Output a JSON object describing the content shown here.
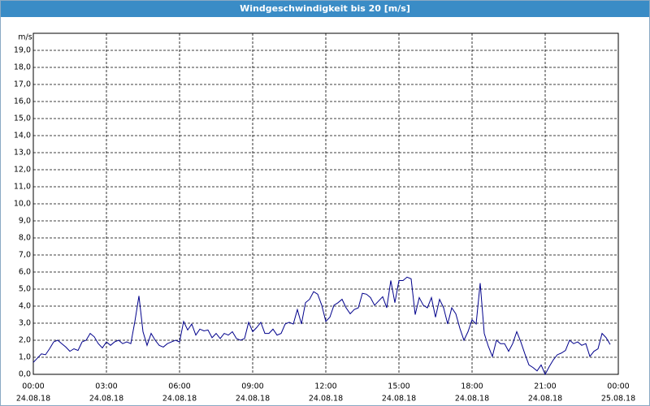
{
  "chart_data": {
    "type": "line",
    "title": "Windgeschwindigkeit bis 20 [m/s]",
    "y_label": "m/s",
    "x": [
      0,
      10,
      20,
      30,
      40,
      50,
      60,
      70,
      80,
      90,
      100,
      110,
      120,
      130,
      140,
      150,
      160,
      170,
      180,
      190,
      200,
      210,
      220,
      230,
      240,
      250,
      260,
      270,
      280,
      290,
      300,
      310,
      320,
      330,
      340,
      350,
      360,
      370,
      380,
      390,
      400,
      410,
      420,
      430,
      440,
      450,
      460,
      470,
      480,
      490,
      500,
      510,
      520,
      530,
      540,
      550,
      560,
      570,
      580,
      590,
      600,
      610,
      620,
      630,
      640,
      650,
      660,
      670,
      680,
      690,
      700,
      710,
      720,
      730,
      740,
      750,
      760,
      770,
      780,
      790,
      800,
      810,
      820,
      830,
      840,
      850,
      860,
      870,
      880,
      890,
      900,
      910,
      920,
      930,
      940,
      950,
      960,
      970,
      980,
      990,
      1000,
      1010,
      1020,
      1030,
      1040,
      1050,
      1060,
      1070,
      1080,
      1090,
      1100,
      1110,
      1120,
      1130,
      1140,
      1150,
      1160,
      1170,
      1180,
      1190,
      1200,
      1210,
      1220,
      1230,
      1240,
      1250,
      1260,
      1270,
      1280,
      1290,
      1300,
      1310,
      1320,
      1330,
      1340,
      1350,
      1360,
      1370,
      1380,
      1390,
      1400,
      1410,
      1420
    ],
    "series": [
      {
        "color": "#00008b",
        "values": [
          0.7,
          0.95,
          1.2,
          1.15,
          1.5,
          1.9,
          2.0,
          1.8,
          1.6,
          1.35,
          1.5,
          1.4,
          1.9,
          2.0,
          2.4,
          2.2,
          1.8,
          1.55,
          1.9,
          1.7,
          1.9,
          2.0,
          1.8,
          1.9,
          1.8,
          3.1,
          4.6,
          2.5,
          1.7,
          2.4,
          2.0,
          1.7,
          1.6,
          1.8,
          1.9,
          2.0,
          1.9,
          3.1,
          2.6,
          2.95,
          2.3,
          2.65,
          2.55,
          2.6,
          2.15,
          2.4,
          2.1,
          2.4,
          2.3,
          2.5,
          2.1,
          2.0,
          2.1,
          3.05,
          2.5,
          2.75,
          3.05,
          2.4,
          2.4,
          2.65,
          2.3,
          2.4,
          2.95,
          3.05,
          2.95,
          3.8,
          2.95,
          4.2,
          4.4,
          4.85,
          4.7,
          4.05,
          3.1,
          3.35,
          4.05,
          4.2,
          4.4,
          3.9,
          3.55,
          3.8,
          3.9,
          4.75,
          4.7,
          4.5,
          4.05,
          4.3,
          4.55,
          3.9,
          5.5,
          4.2,
          5.5,
          5.5,
          5.7,
          5.6,
          3.5,
          4.5,
          4.05,
          3.9,
          4.5,
          3.35,
          4.4,
          3.9,
          2.95,
          3.9,
          3.55,
          2.7,
          2.0,
          2.5,
          3.2,
          2.95,
          5.35,
          2.4,
          1.65,
          1.05,
          2.0,
          1.8,
          1.8,
          1.35,
          1.8,
          2.5,
          1.9,
          1.2,
          0.55,
          0.4,
          0.2,
          0.55,
          0.0,
          0.45,
          0.85,
          1.15,
          1.25,
          1.4,
          2.0,
          1.8,
          1.9,
          1.7,
          1.8,
          1.05,
          1.35,
          1.5,
          2.4,
          2.15,
          1.75
        ]
      }
    ],
    "xlim": [
      0,
      1440
    ],
    "xticks": [
      {
        "value": 0,
        "label": "00:00",
        "date": "24.08.18"
      },
      {
        "value": 180,
        "label": "03:00",
        "date": "24.08.18"
      },
      {
        "value": 360,
        "label": "06:00",
        "date": "24.08.18"
      },
      {
        "value": 540,
        "label": "09:00",
        "date": "24.08.18"
      },
      {
        "value": 720,
        "label": "12:00",
        "date": "24.08.18"
      },
      {
        "value": 900,
        "label": "15:00",
        "date": "24.08.18"
      },
      {
        "value": 1080,
        "label": "18:00",
        "date": "24.08.18"
      },
      {
        "value": 1260,
        "label": "21:00",
        "date": "24.08.18"
      },
      {
        "value": 1440,
        "label": "00:00",
        "date": "25.08.18"
      }
    ],
    "ylim": [
      0,
      20
    ],
    "yticks": [
      {
        "value": 0,
        "label": "0,0"
      },
      {
        "value": 1,
        "label": "1,0"
      },
      {
        "value": 2,
        "label": "2,0"
      },
      {
        "value": 3,
        "label": "3,0"
      },
      {
        "value": 4,
        "label": "4,0"
      },
      {
        "value": 5,
        "label": "5,0"
      },
      {
        "value": 6,
        "label": "6,0"
      },
      {
        "value": 7,
        "label": "7,0"
      },
      {
        "value": 8,
        "label": "8,0"
      },
      {
        "value": 9,
        "label": "9,0"
      },
      {
        "value": 10,
        "label": "10,0"
      },
      {
        "value": 11,
        "label": "11,0"
      },
      {
        "value": 12,
        "label": "12,0"
      },
      {
        "value": 13,
        "label": "13,0"
      },
      {
        "value": 14,
        "label": "14,0"
      },
      {
        "value": 15,
        "label": "15,0"
      },
      {
        "value": 16,
        "label": "16,0"
      },
      {
        "value": 17,
        "label": "17,0"
      },
      {
        "value": 18,
        "label": "18,0"
      },
      {
        "value": 19,
        "label": "19,0"
      }
    ],
    "grid": true
  }
}
